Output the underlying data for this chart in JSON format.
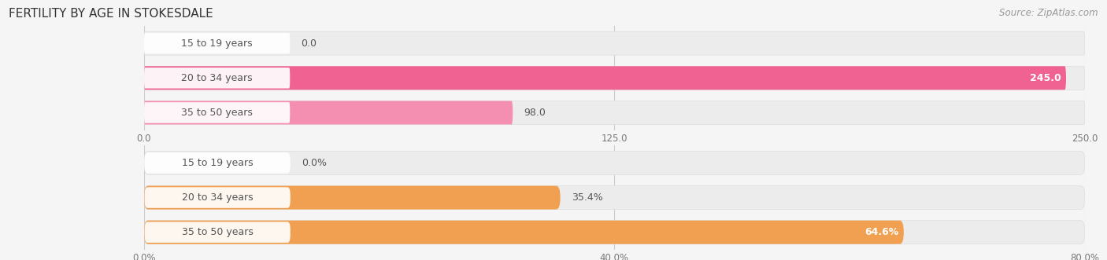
{
  "title": "FERTILITY BY AGE IN STOKESDALE",
  "source": "Source: ZipAtlas.com",
  "top_chart": {
    "categories": [
      "15 to 19 years",
      "20 to 34 years",
      "35 to 50 years"
    ],
    "values": [
      0.0,
      245.0,
      98.0
    ],
    "xlim": [
      0,
      250.0
    ],
    "xticks": [
      0.0,
      125.0,
      250.0
    ],
    "xtick_labels": [
      "0.0",
      "125.0",
      "250.0"
    ],
    "bar_color_fill": [
      "#f48fb1",
      "#f06292",
      "#f48fb1"
    ],
    "track_color": "#eeeeee",
    "value_labels": [
      "0.0",
      "245.0",
      "98.0"
    ],
    "label_inside": [
      false,
      true,
      false
    ]
  },
  "bottom_chart": {
    "categories": [
      "15 to 19 years",
      "20 to 34 years",
      "35 to 50 years"
    ],
    "values": [
      0.0,
      35.4,
      64.6
    ],
    "xlim": [
      0,
      80.0
    ],
    "xticks": [
      0.0,
      40.0,
      80.0
    ],
    "xtick_labels": [
      "0.0%",
      "40.0%",
      "80.0%"
    ],
    "bar_color_fill": [
      "#f5c89a",
      "#f0a050",
      "#f0a050"
    ],
    "track_color": "#eeeeee",
    "value_labels": [
      "0.0%",
      "35.4%",
      "64.6%"
    ],
    "label_inside": [
      false,
      false,
      true
    ]
  },
  "bg_color": "#f5f5f5",
  "title_fontsize": 11,
  "source_fontsize": 8.5,
  "cat_fontsize": 9,
  "val_fontsize": 9
}
